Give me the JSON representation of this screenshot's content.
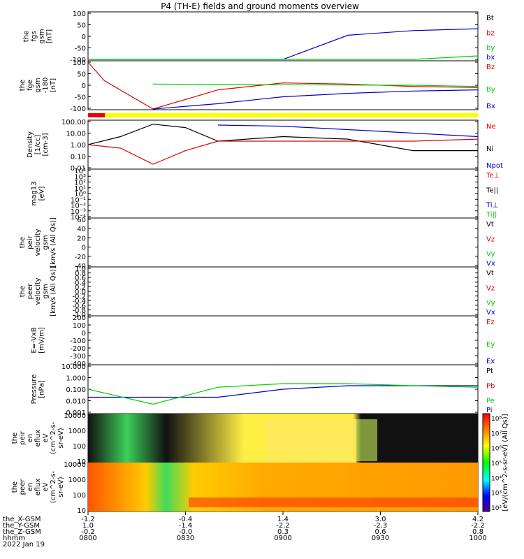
{
  "title": "P4 (TH-E) fields and ground moments overview",
  "colors": {
    "black": "#000000",
    "red": "#dd0000",
    "green": "#00cc00",
    "blue": "#0000cc"
  },
  "panels": [
    {
      "ylabel": [
        "the",
        "fgs",
        "gsm",
        "[nT]"
      ],
      "ticks": [
        "100",
        "50",
        "0",
        "-50",
        "-100"
      ],
      "legend": [
        {
          "text": "Bt",
          "color": "#000000"
        },
        {
          "text": "bz",
          "color": "#dd0000"
        },
        {
          "text": "by",
          "color": "#00cc00"
        },
        {
          "text": "bx",
          "color": "#0000cc"
        }
      ]
    },
    {
      "ylabel": [
        "the",
        "fge",
        "gsm",
        "-180",
        "[nT]"
      ],
      "ticks": [
        "100",
        "50",
        "0",
        "-50",
        "-100"
      ],
      "legend": [
        {
          "text": "Bz",
          "color": "#dd0000"
        },
        {
          "text": "By",
          "color": "#00cc00"
        },
        {
          "text": "Bx",
          "color": "#0000cc"
        }
      ]
    },
    {
      "ylabel": [
        "Density",
        "[1/cc]",
        "[cm-3]"
      ],
      "ticks": [
        "100.00",
        "10.00",
        "1.00",
        "0.10",
        "0.01"
      ],
      "legend": [
        {
          "text": "Ne",
          "color": "#dd0000"
        },
        {
          "text": "Ni",
          "color": "#000000"
        },
        {
          "text": "Npot",
          "color": "#0000cc"
        }
      ]
    },
    {
      "ylabel": [
        "mag13",
        "[eV]"
      ],
      "ticks": [
        "10⁴",
        "10³",
        "10²",
        "10¹",
        "10⁰",
        "10⁻¹",
        "10⁻²",
        "10⁻³",
        "10⁻⁴"
      ],
      "legend": [
        {
          "text": "Te⊥",
          "color": "#dd0000"
        },
        {
          "text": "Te||",
          "color": "#000000"
        },
        {
          "text": "Ti⊥",
          "color": "#0000cc"
        },
        {
          "text": "Ti||",
          "color": "#00cc00"
        }
      ]
    },
    {
      "ylabel": [
        "the",
        "peir",
        "velocity",
        "gsm",
        "[km/s (All Qs)]"
      ],
      "ticks": [
        "60",
        "40",
        "20",
        "0",
        "-20",
        "-40"
      ],
      "legend": [
        {
          "text": "Vt",
          "color": "#000000"
        },
        {
          "text": "Vz",
          "color": "#dd0000"
        },
        {
          "text": "Vy",
          "color": "#00cc00"
        },
        {
          "text": "Vx",
          "color": "#0000cc"
        }
      ]
    },
    {
      "ylabel": [
        "the",
        "peer",
        "velocity",
        "gsm",
        "[km/s (All Qs)]"
      ],
      "ticks": [
        "1.0",
        "0.8",
        "0.6",
        "0.4",
        "0.2",
        "0.0",
        "-0.2",
        "-0.4",
        "-0.6",
        "-0.8",
        "-1.0"
      ],
      "legend": [
        {
          "text": "Vt",
          "color": "#000000"
        },
        {
          "text": "Vz",
          "color": "#dd0000"
        },
        {
          "text": "Vy",
          "color": "#00cc00"
        },
        {
          "text": "Vx",
          "color": "#0000cc"
        }
      ]
    },
    {
      "ylabel": [
        "E=-VxB",
        "[mV/m]"
      ],
      "ticks": [
        "200",
        "100",
        "0",
        "-100",
        "-200",
        "-300",
        "-400"
      ],
      "legend": [
        {
          "text": "Ez",
          "color": "#dd0000"
        },
        {
          "text": "Ey",
          "color": "#00cc00"
        },
        {
          "text": "Ex",
          "color": "#0000cc"
        }
      ]
    },
    {
      "ylabel": [
        "Pressure",
        "[nPa]"
      ],
      "ticks": [
        "10.000",
        "1.000",
        "0.100",
        "0.010",
        "0.001"
      ],
      "legend": [
        {
          "text": "Pt",
          "color": "#000000"
        },
        {
          "text": "Pb",
          "color": "#dd0000"
        },
        {
          "text": "Pe",
          "color": "#00cc00"
        },
        {
          "text": "Pi",
          "color": "#0000cc"
        }
      ]
    },
    {
      "ylabel": [
        "the",
        "peir",
        "en",
        "eflux",
        "eV",
        "(cm^2-s-",
        "sr-eV)"
      ],
      "ticks": [
        "10000",
        "1000",
        "100",
        "10"
      ]
    },
    {
      "ylabel": [
        "the",
        "peer",
        "en",
        "eflux",
        "eV",
        "(cm^2-s-",
        "sr-eV)"
      ],
      "ticks": [
        "10000",
        "1000",
        "100",
        "10"
      ]
    }
  ],
  "colorbar": {
    "ticks": [
      "10⁸",
      "10⁷",
      "10⁶",
      "10⁵",
      "10⁴",
      "10³",
      "10²"
    ],
    "label": "[eV/(cm^2-s-sr-eV) (All Qs)]"
  },
  "xaxis": {
    "row_labels": [
      "the_X-GSM",
      "the_Y-GSM",
      "the_Z-GSM",
      "hhmm",
      "2022 Jan 19"
    ],
    "columns": [
      {
        "x": "-1.2",
        "y": "1.0",
        "z": "-0.2",
        "t": "0800"
      },
      {
        "x": "-0.4",
        "y": "-1.4",
        "z": "-0.0",
        "t": "0830"
      },
      {
        "x": "1.4",
        "y": "-2.2",
        "z": "0.3",
        "t": "0900"
      },
      {
        "x": "3.0",
        "y": "-2.3",
        "z": "0.6",
        "t": "0930"
      },
      {
        "x": "4.2",
        "y": "-2.2",
        "z": "0.8",
        "t": "1000"
      }
    ]
  },
  "chart_data": {
    "type": "line",
    "title": "P4 (TH-E) fields and ground moments overview",
    "x_range": [
      "08:00",
      "10:00"
    ],
    "series": [
      {
        "name": "bx",
        "panel": "fgs",
        "x": [
          0,
          20,
          40,
          60,
          80,
          100,
          120
        ],
        "values": [
          -100,
          -100,
          -100,
          -100,
          5,
          25,
          33
        ]
      },
      {
        "name": "by",
        "panel": "fgs",
        "x": [
          0,
          20,
          40,
          60,
          80,
          100,
          120
        ],
        "values": [
          -100,
          -100,
          -100,
          -100,
          -100,
          -100,
          -85
        ]
      },
      {
        "name": "Bz",
        "panel": "fge",
        "x": [
          0,
          5,
          20,
          40,
          60,
          80,
          100,
          120
        ],
        "values": [
          100,
          20,
          -110,
          -20,
          10,
          5,
          -5,
          -10
        ]
      },
      {
        "name": "By",
        "panel": "fge",
        "x": [
          20,
          40,
          60,
          80,
          100,
          120
        ],
        "values": [
          5,
          3,
          2,
          1,
          0,
          -5
        ]
      },
      {
        "name": "Bx",
        "panel": "fge",
        "x": [
          20,
          40,
          60,
          80,
          100,
          120
        ],
        "values": [
          -120,
          -80,
          -50,
          -35,
          -25,
          -20
        ]
      },
      {
        "name": "Ni",
        "panel": "Density",
        "x": [
          0,
          10,
          20,
          30,
          40,
          60,
          80,
          100,
          120
        ],
        "values": [
          1,
          5,
          60,
          30,
          2,
          5,
          3,
          0.3,
          0.3
        ]
      },
      {
        "name": "Ne",
        "panel": "Density",
        "x": [
          0,
          10,
          20,
          30,
          40,
          60,
          80,
          100,
          120
        ],
        "values": [
          1,
          0.5,
          0.02,
          0.3,
          2,
          2,
          2,
          2,
          3
        ]
      },
      {
        "name": "Npot",
        "panel": "Density",
        "x": [
          40,
          60,
          80,
          100,
          120
        ],
        "values": [
          50,
          40,
          20,
          10,
          5
        ]
      },
      {
        "name": "Pi",
        "panel": "Pressure",
        "x": [
          0,
          20,
          40,
          60,
          80,
          100,
          120
        ],
        "values": [
          0.02,
          0.02,
          0.02,
          0.1,
          0.2,
          0.2,
          0.2
        ]
      },
      {
        "name": "Pe",
        "panel": "Pressure",
        "x": [
          0,
          20,
          40,
          60,
          80,
          100,
          120
        ],
        "values": [
          0.1,
          0.005,
          0.15,
          0.3,
          0.3,
          0.2,
          0.15
        ]
      }
    ],
    "grid": false,
    "legend_placement": "right"
  }
}
